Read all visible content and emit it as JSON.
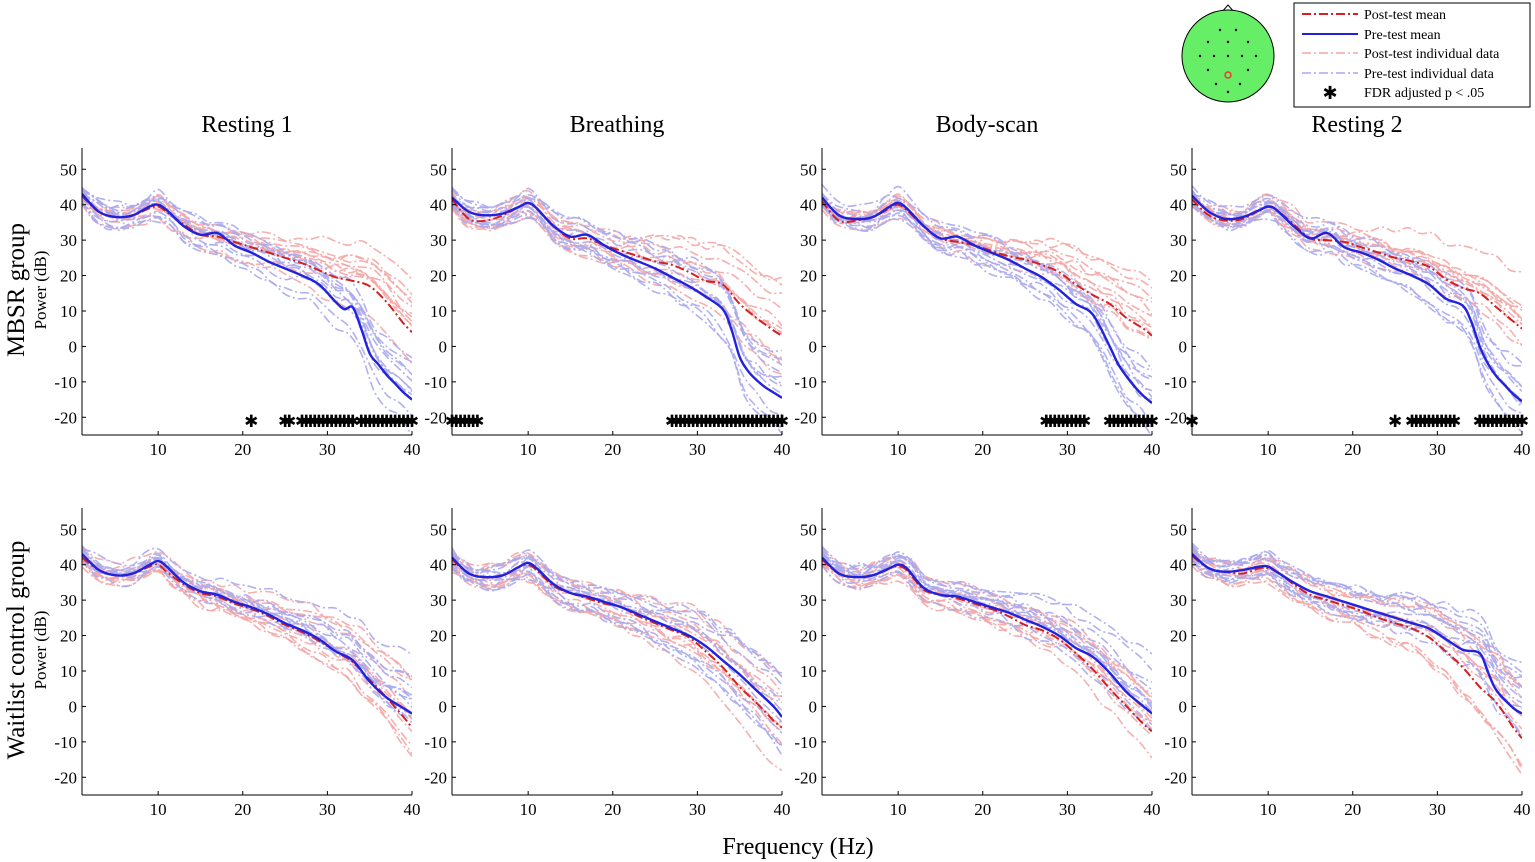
{
  "figure": {
    "column_titles": [
      "Resting 1",
      "Breathing",
      "Body-scan",
      "Resting 2"
    ],
    "row_labels": [
      "MBSR group",
      "Waitlist control group"
    ],
    "y_axis_label": "Power (dB)",
    "x_axis_label": "Frequency (Hz)",
    "legend": [
      {
        "label": "Post-test mean",
        "style": "dashdot",
        "color": "#d62020"
      },
      {
        "label": "Pre-test mean",
        "style": "solid",
        "color": "#2222dd"
      },
      {
        "label": "Post-test individual data",
        "style": "dashdot",
        "color": "#f4a6a6"
      },
      {
        "label": "Pre-test individual data",
        "style": "dashdot",
        "color": "#a8a8ee"
      },
      {
        "label": "FDR adjusted p < .05",
        "style": "marker",
        "color": "#000000"
      }
    ],
    "head_map": {
      "scalp_color": "#66ee66",
      "highlight_color": "#ee3333"
    }
  },
  "chart_data": {
    "type": "line",
    "xlim": [
      1,
      40
    ],
    "ylim": [
      -25,
      56
    ],
    "xticks": [
      10,
      20,
      30,
      40
    ],
    "yticks": [
      -20,
      -10,
      0,
      10,
      20,
      30,
      40,
      50
    ],
    "panels": [
      {
        "row": "MBSR group",
        "column": "Resting 1",
        "series": [
          {
            "name": "Pre-test mean",
            "x": [
              1,
              3,
              5,
              7,
              9,
              10,
              11,
              13,
              15,
              17,
              19,
              21,
              23,
              25,
              27,
              29,
              31,
              32,
              33,
              34,
              35,
              36,
              37,
              38,
              39,
              40
            ],
            "values": [
              43,
              38,
              36.5,
              37,
              39.5,
              40,
              38.5,
              34,
              31.5,
              32,
              28.5,
              26.5,
              24,
              22,
              20,
              17.5,
              12.5,
              10.5,
              11,
              5,
              -2,
              -5,
              -8,
              -10.5,
              -13,
              -15
            ]
          },
          {
            "name": "Post-test mean",
            "x": [
              1,
              3,
              5,
              7,
              9,
              10,
              11,
              13,
              15,
              17,
              19,
              21,
              23,
              25,
              27,
              29,
              31,
              33,
              35,
              37,
              39,
              40
            ],
            "values": [
              42.5,
              38,
              36.5,
              37,
              39,
              39.5,
              38,
              34.5,
              31.5,
              31,
              29.5,
              28,
              26.5,
              25,
              23.5,
              21.5,
              19.5,
              18.5,
              17,
              12.5,
              6.5,
              4
            ]
          }
        ],
        "significant_frequencies": [
          21,
          25,
          25.5,
          27,
          27.5,
          28,
          28.5,
          29,
          29.5,
          30,
          30.5,
          31,
          31.5,
          32,
          32.5,
          33,
          34,
          34.5,
          35,
          35.5,
          36,
          36.5,
          37,
          37.5,
          38,
          38.5,
          39,
          39.5,
          40
        ]
      },
      {
        "row": "MBSR group",
        "column": "Breathing",
        "series": [
          {
            "name": "Pre-test mean",
            "x": [
              1,
              3,
              5,
              7,
              9,
              10,
              11,
              13,
              15,
              17,
              19,
              21,
              23,
              25,
              27,
              29,
              31,
              33,
              34,
              35,
              36,
              37,
              38,
              39,
              40
            ],
            "values": [
              42,
              38,
              37,
              37.5,
              39.5,
              40.5,
              39,
              34,
              31,
              31.5,
              28.5,
              26,
              24,
              22,
              19.5,
              17,
              14,
              10.5,
              5,
              -3,
              -7,
              -9.5,
              -11.5,
              -13,
              -14.5
            ]
          },
          {
            "name": "Post-test mean",
            "x": [
              1,
              3,
              5,
              7,
              9,
              10,
              11,
              13,
              15,
              17,
              19,
              21,
              23,
              25,
              27,
              29,
              31,
              33,
              35,
              37,
              39,
              40
            ],
            "values": [
              41.5,
              36,
              35.5,
              37,
              39.5,
              40.5,
              39,
              34,
              30.5,
              30.5,
              28.5,
              27,
              25.5,
              24,
              23,
              21,
              18.5,
              17.5,
              12,
              8,
              4.5,
              3
            ]
          }
        ],
        "significant_frequencies": [
          1,
          1.5,
          2,
          2.5,
          3,
          3.5,
          4,
          27,
          27.5,
          28,
          28.5,
          29,
          29.5,
          30,
          30.5,
          31,
          31.5,
          32,
          32.5,
          33,
          33.5,
          34,
          34.5,
          35,
          35.5,
          36,
          36.5,
          37,
          37.5,
          38,
          38.5,
          39,
          39.5,
          40
        ]
      },
      {
        "row": "MBSR group",
        "column": "Body-scan",
        "series": [
          {
            "name": "Pre-test mean",
            "x": [
              1,
              3,
              5,
              7,
              9,
              10,
              11,
              13,
              15,
              17,
              19,
              21,
              23,
              25,
              27,
              29,
              31,
              33,
              35,
              36,
              37,
              38,
              39,
              40
            ],
            "values": [
              42,
              37,
              36,
              36.5,
              39.5,
              40.5,
              39,
              34,
              30.5,
              31,
              28.5,
              26.5,
              24.5,
              22,
              19.5,
              16,
              12,
              9,
              0,
              -5,
              -8.5,
              -11.5,
              -14,
              -16
            ]
          },
          {
            "name": "Post-test mean",
            "x": [
              1,
              3,
              5,
              7,
              9,
              10,
              11,
              13,
              15,
              17,
              19,
              21,
              23,
              25,
              27,
              29,
              31,
              33,
              35,
              37,
              39,
              40
            ],
            "values": [
              41,
              35.5,
              35.5,
              36.5,
              39,
              40,
              38.5,
              34,
              30.5,
              29.5,
              28.5,
              27,
              25.5,
              24.5,
              23,
              21,
              17.5,
              14.5,
              12,
              8,
              5,
              3
            ]
          }
        ],
        "significant_frequencies": [
          27.5,
          28,
          28.5,
          29,
          29.5,
          30,
          30.5,
          31,
          31.5,
          32,
          35,
          35.5,
          36,
          36.5,
          37,
          37.5,
          38,
          38.5,
          39,
          39.5,
          40
        ]
      },
      {
        "row": "MBSR group",
        "column": "Resting 2",
        "series": [
          {
            "name": "Pre-test mean",
            "x": [
              1,
              3,
              5,
              7,
              9,
              10,
              11,
              13,
              15,
              17,
              19,
              21,
              23,
              25,
              27,
              29,
              31,
              33,
              34,
              35,
              36,
              37,
              38,
              39,
              40
            ],
            "values": [
              42.5,
              38,
              36,
              36.5,
              38.5,
              39.5,
              38.5,
              34,
              30.5,
              32,
              28,
              26.5,
              24.5,
              22,
              20,
              17.5,
              13.5,
              11.5,
              7,
              0,
              -5,
              -8.5,
              -11,
              -13.5,
              -15.5
            ]
          },
          {
            "name": "Post-test mean",
            "x": [
              1,
              3,
              5,
              7,
              9,
              10,
              11,
              13,
              15,
              17,
              19,
              21,
              23,
              25,
              27,
              29,
              31,
              33,
              35,
              37,
              39,
              40
            ],
            "values": [
              41.5,
              37,
              35.5,
              36,
              38.5,
              39.5,
              38.5,
              34.5,
              30.5,
              30,
              29.5,
              28,
              26.5,
              25,
              24,
              22.5,
              19,
              16.5,
              15,
              11,
              7,
              5
            ]
          }
        ],
        "significant_frequencies": [
          1,
          25,
          27,
          27.5,
          28,
          28.5,
          29,
          29.5,
          30,
          30.5,
          31,
          31.5,
          32,
          35,
          35.5,
          36,
          36.5,
          37,
          37.5,
          38,
          38.5,
          39,
          39.5,
          40
        ]
      },
      {
        "row": "Waitlist control group",
        "column": "Resting 1",
        "series": [
          {
            "name": "Pre-test mean",
            "x": [
              1,
              3,
              5,
              7,
              9,
              10,
              11,
              13,
              15,
              17,
              19,
              21,
              23,
              25,
              27,
              29,
              31,
              33,
              35,
              37,
              39,
              40
            ],
            "values": [
              43,
              38.5,
              37,
              37.5,
              40,
              41,
              39.5,
              35,
              32.5,
              31.5,
              29.5,
              28,
              26,
              23.5,
              21.5,
              19,
              15.5,
              13,
              7,
              2.5,
              -0.5,
              -2
            ]
          },
          {
            "name": "Post-test mean",
            "x": [
              1,
              3,
              5,
              7,
              9,
              10,
              11,
              13,
              15,
              17,
              19,
              21,
              23,
              25,
              27,
              29,
              31,
              33,
              35,
              37,
              39,
              40
            ],
            "values": [
              42,
              38.5,
              37,
              37.5,
              39.5,
              40,
              38,
              34.5,
              32,
              31,
              29,
              27.5,
              25.5,
              23,
              21,
              18.5,
              15.5,
              12.5,
              7.5,
              2.5,
              -3,
              -6
            ]
          }
        ]
      },
      {
        "row": "Waitlist control group",
        "column": "Breathing",
        "series": [
          {
            "name": "Pre-test mean",
            "x": [
              1,
              3,
              5,
              7,
              9,
              10,
              11,
              13,
              15,
              17,
              19,
              21,
              23,
              25,
              27,
              29,
              31,
              33,
              35,
              37,
              39,
              40
            ],
            "values": [
              42,
              37.5,
              36.5,
              37,
              39.5,
              40.5,
              39,
              34.5,
              32,
              31,
              29.5,
              28,
              26,
              24,
              22,
              20,
              17,
              13,
              9,
              4.5,
              0,
              -3
            ]
          },
          {
            "name": "Post-test mean",
            "x": [
              1,
              3,
              5,
              7,
              9,
              10,
              11,
              13,
              15,
              17,
              19,
              21,
              23,
              25,
              27,
              29,
              31,
              33,
              35,
              37,
              39,
              40
            ],
            "values": [
              41.5,
              37.5,
              36.5,
              37,
              39.5,
              40,
              38.5,
              34,
              32,
              30.5,
              29,
              28,
              25.5,
              23.5,
              21.5,
              19.5,
              15.5,
              11,
              5.5,
              1,
              -4,
              -6
            ]
          }
        ]
      },
      {
        "row": "Waitlist control group",
        "column": "Body-scan",
        "series": [
          {
            "name": "Pre-test mean",
            "x": [
              1,
              3,
              5,
              7,
              9,
              10,
              11,
              13,
              15,
              17,
              19,
              21,
              23,
              25,
              27,
              29,
              31,
              33,
              35,
              37,
              39,
              40
            ],
            "values": [
              42,
              37.5,
              36.5,
              37,
              39,
              40,
              39,
              33.5,
              31.5,
              31,
              29.5,
              28,
              26.5,
              24.5,
              22.5,
              20,
              16.5,
              14,
              9.5,
              4,
              0,
              -2
            ]
          },
          {
            "name": "Post-test mean",
            "x": [
              1,
              3,
              5,
              7,
              9,
              10,
              11,
              13,
              15,
              17,
              19,
              21,
              23,
              25,
              27,
              29,
              31,
              33,
              35,
              37,
              39,
              40
            ],
            "values": [
              41.5,
              37.5,
              36.5,
              37,
              39,
              39.5,
              38.5,
              33,
              31.5,
              30.5,
              29,
              27.5,
              25.5,
              23,
              21.5,
              19,
              15,
              10.5,
              5,
              0,
              -5,
              -7
            ]
          }
        ]
      },
      {
        "row": "Waitlist control group",
        "column": "Resting 2",
        "series": [
          {
            "name": "Pre-test mean",
            "x": [
              1,
              3,
              5,
              7,
              9,
              10,
              11,
              13,
              15,
              17,
              19,
              21,
              23,
              25,
              27,
              29,
              31,
              33,
              35,
              36,
              37,
              39,
              40
            ],
            "values": [
              43,
              39,
              38,
              38.5,
              39.5,
              39.5,
              38,
              35,
              32.5,
              31,
              29.5,
              28,
              26.5,
              25,
              23.5,
              22,
              19,
              16,
              15,
              9.5,
              4.5,
              -0.5,
              -2
            ]
          },
          {
            "name": "Post-test mean",
            "x": [
              1,
              3,
              5,
              7,
              9,
              10,
              11,
              13,
              15,
              17,
              19,
              21,
              23,
              25,
              27,
              29,
              31,
              33,
              35,
              37,
              39,
              40
            ],
            "values": [
              42.5,
              39,
              38,
              37.5,
              39,
              39,
              38,
              34.5,
              31.5,
              30,
              28.5,
              27,
              25,
              23.5,
              22,
              19.5,
              15.5,
              11,
              5.5,
              1,
              -6,
              -9
            ]
          }
        ]
      }
    ]
  }
}
